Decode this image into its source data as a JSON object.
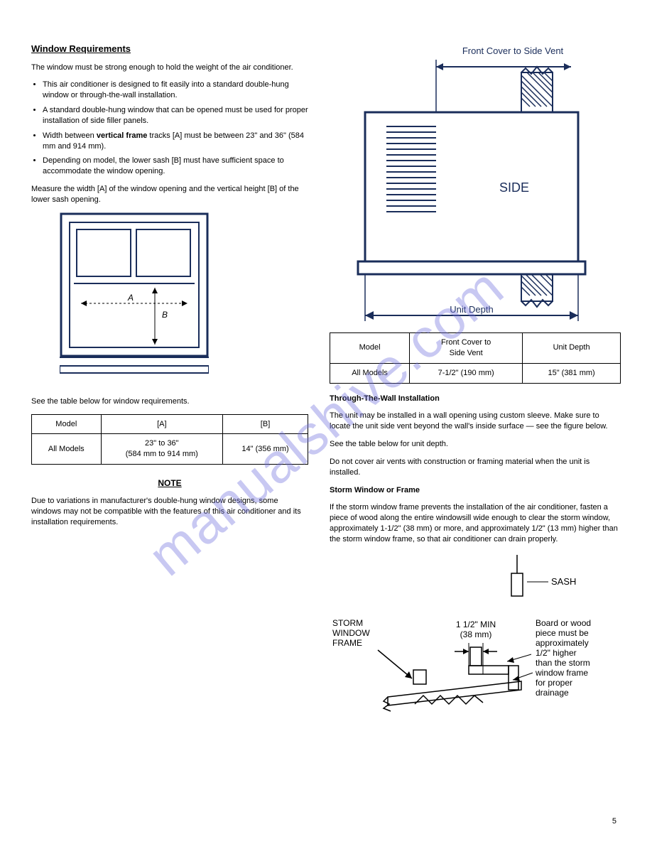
{
  "watermark": "manualshive.com",
  "page_number": "5",
  "left": {
    "section_title": "Window Requirements",
    "intro": "The window must be strong enough to hold the weight of the air conditioner.",
    "bullets": [
      "This air conditioner is designed to fit easily into a standard double-hung window or through-the-wall installation.",
      "A standard double-hung window that can be opened must be used for proper installation of side filler panels.",
      "Width between <b>vertical frame</b> tracks [A] must be between 23\" and 36\" (584 mm and 914 mm).",
      "Depending on model, the lower sash [B] must have sufficient space to accommodate the window opening."
    ],
    "measure_note": "Measure the width [A] of the window opening and the vertical height [B] of the lower sash opening.",
    "see_table": "See the table below for window requirements.",
    "table": {
      "headers": [
        "Model",
        "[A]",
        "[B]"
      ],
      "row": [
        "All Models",
        "23\" to 36\"\n(584 mm to 914 mm)",
        "14\" (356 mm)"
      ]
    },
    "note_section_title": "NOTE",
    "note_text": "Due to variations in manufacturer's double-hung window designs, some windows may not be compatible with the features of this air conditioner and its installation requirements."
  },
  "right": {
    "diagram": {
      "label_front_cover": "Front Cover to Side Vent",
      "label_side": "SIDE",
      "label_unit_depth": "Unit Depth",
      "table": {
        "headers": [
          "Model",
          "Front Cover to\nSide Vent",
          "Unit Depth"
        ],
        "row": [
          "All Models",
          "7-1/2\" (190 mm)",
          "15\" (381 mm)"
        ]
      }
    },
    "tww_heading": "Through-The-Wall Installation",
    "tww_paras": [
      "The unit may be installed in a wall opening using custom sleeve. Make sure to locate the unit side vent beyond the wall's inside surface — see the figure below.",
      "See the table below for unit depth.",
      "Do not cover air vents with construction or framing material when the unit is installed."
    ],
    "storm_heading": "Storm Window or Frame",
    "storm_text": "If the storm window frame prevents the installation of the air conditioner, fasten a piece of wood along the entire windowsill wide enough to clear the storm window, approximately 1-1/2\" (38 mm) or more, and approximately 1/2\" (13 mm) higher than the storm window frame, so that air conditioner can drain properly.",
    "storm_labels": {
      "sash": "SASH",
      "storm_frame": "STORM\nWINDOW\nFRAME",
      "min": "1 1/2\" MIN\n(38 mm)",
      "board": "Board or wood piece must be approximately 1/2\" higher than the storm window frame for proper drainage"
    }
  },
  "colors": {
    "stroke_dark": "#1a2d5a",
    "stroke_black": "#000000",
    "hatch": "#1a2d5a",
    "watermark": "rgba(110,110,220,0.38)"
  }
}
